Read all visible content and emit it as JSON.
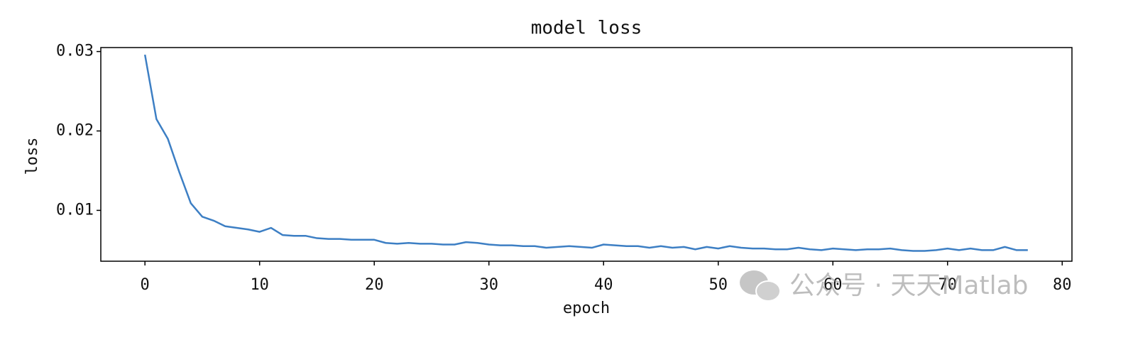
{
  "chart_data": {
    "type": "line",
    "title": "model loss",
    "x_label": "epoch",
    "y_label": "loss",
    "x": [
      0,
      1,
      2,
      3,
      4,
      5,
      6,
      7,
      8,
      9,
      10,
      11,
      12,
      13,
      14,
      15,
      16,
      17,
      18,
      19,
      20,
      21,
      22,
      23,
      24,
      25,
      26,
      27,
      28,
      29,
      30,
      31,
      32,
      33,
      34,
      35,
      36,
      37,
      38,
      39,
      40,
      41,
      42,
      43,
      44,
      45,
      46,
      47,
      48,
      49,
      50,
      51,
      52,
      53,
      54,
      55,
      56,
      57,
      58,
      59,
      60,
      61,
      62,
      63,
      64,
      65,
      66,
      67,
      68,
      69,
      70,
      71,
      72,
      73,
      74,
      75,
      76,
      77
    ],
    "series": [
      {
        "name": "loss",
        "color": "#3d7fc4",
        "values": [
          0.0296,
          0.0215,
          0.019,
          0.0148,
          0.0109,
          0.0092,
          0.0087,
          0.008,
          0.0078,
          0.0076,
          0.0073,
          0.0078,
          0.0069,
          0.0068,
          0.0068,
          0.0065,
          0.0064,
          0.0064,
          0.0063,
          0.0063,
          0.0063,
          0.0059,
          0.0058,
          0.0059,
          0.0058,
          0.0058,
          0.0057,
          0.0057,
          0.006,
          0.0059,
          0.0057,
          0.0056,
          0.0056,
          0.0055,
          0.0055,
          0.0053,
          0.0054,
          0.0055,
          0.0054,
          0.0053,
          0.0057,
          0.0056,
          0.0055,
          0.0055,
          0.0053,
          0.0055,
          0.0053,
          0.0054,
          0.0051,
          0.0054,
          0.0052,
          0.0055,
          0.0053,
          0.0052,
          0.0052,
          0.0051,
          0.0051,
          0.0053,
          0.0051,
          0.005,
          0.0052,
          0.0051,
          0.005,
          0.0051,
          0.0051,
          0.0052,
          0.005,
          0.0049,
          0.0049,
          0.005,
          0.0052,
          0.005,
          0.0052,
          0.005,
          0.005,
          0.0054,
          0.005,
          0.005
        ]
      }
    ],
    "xlim": [
      -3.85,
      80.85
    ],
    "ylim": [
      0.0036,
      0.0305
    ],
    "xticks": [
      0,
      10,
      20,
      30,
      40,
      50,
      60,
      70,
      80
    ],
    "yticks": [
      0.01,
      0.02,
      0.03
    ]
  },
  "watermark": "公众号 · 天天Matlab"
}
